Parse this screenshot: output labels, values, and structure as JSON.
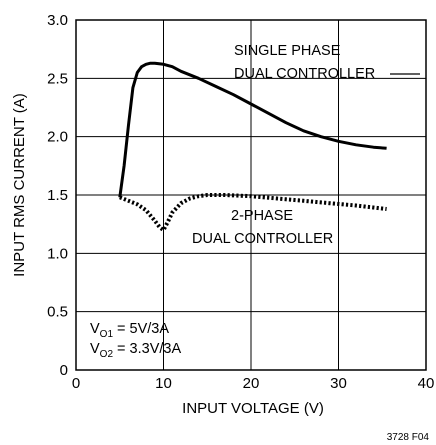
{
  "chart_data": {
    "type": "line",
    "xlabel": "INPUT VOLTAGE (V)",
    "ylabel": "INPUT RMS CURRENT (A)",
    "xlim": [
      0,
      40
    ],
    "ylim": [
      0,
      3.0
    ],
    "x_ticks": [
      "0",
      "10",
      "20",
      "30",
      "40"
    ],
    "y_ticks": [
      "0",
      "0.5",
      "1.0",
      "1.5",
      "2.0",
      "2.5",
      "3.0"
    ],
    "grid": true,
    "series": [
      {
        "name": "SINGLE PHASE DUAL CONTROLLER",
        "style": "solid",
        "x": [
          5,
          5.5,
          6,
          6.5,
          7,
          7.5,
          8,
          8.5,
          9,
          10,
          11,
          12,
          14,
          16,
          18,
          20,
          22,
          24,
          26,
          28,
          30,
          32,
          34,
          35.5
        ],
        "y": [
          1.48,
          1.75,
          2.1,
          2.42,
          2.55,
          2.6,
          2.62,
          2.63,
          2.63,
          2.62,
          2.6,
          2.56,
          2.5,
          2.43,
          2.36,
          2.28,
          2.2,
          2.12,
          2.05,
          2.0,
          1.96,
          1.93,
          1.91,
          1.9
        ]
      },
      {
        "name": "2-PHASE DUAL CONTROLLER",
        "style": "dotted",
        "x": [
          5,
          6,
          7,
          8,
          9,
          9.6,
          10,
          10.5,
          11,
          12,
          13,
          14,
          15,
          17,
          20,
          23,
          26,
          29,
          32,
          35.5
        ],
        "y": [
          1.48,
          1.45,
          1.42,
          1.37,
          1.28,
          1.22,
          1.2,
          1.27,
          1.35,
          1.43,
          1.47,
          1.49,
          1.5,
          1.5,
          1.49,
          1.47,
          1.45,
          1.43,
          1.41,
          1.38
        ]
      }
    ],
    "annotations": {
      "single_line1": "SINGLE PHASE",
      "single_line2": "DUAL CONTROLLER",
      "two_line1": "2-PHASE",
      "two_line2": "DUAL CONTROLLER",
      "cond1_main": "V",
      "cond1_sub": "O1",
      "cond1_rest": " = 5V/3A",
      "cond2_main": "V",
      "cond2_sub": "O2",
      "cond2_rest": " = 3.3V/3A"
    },
    "figure_code": "3728 F04"
  }
}
